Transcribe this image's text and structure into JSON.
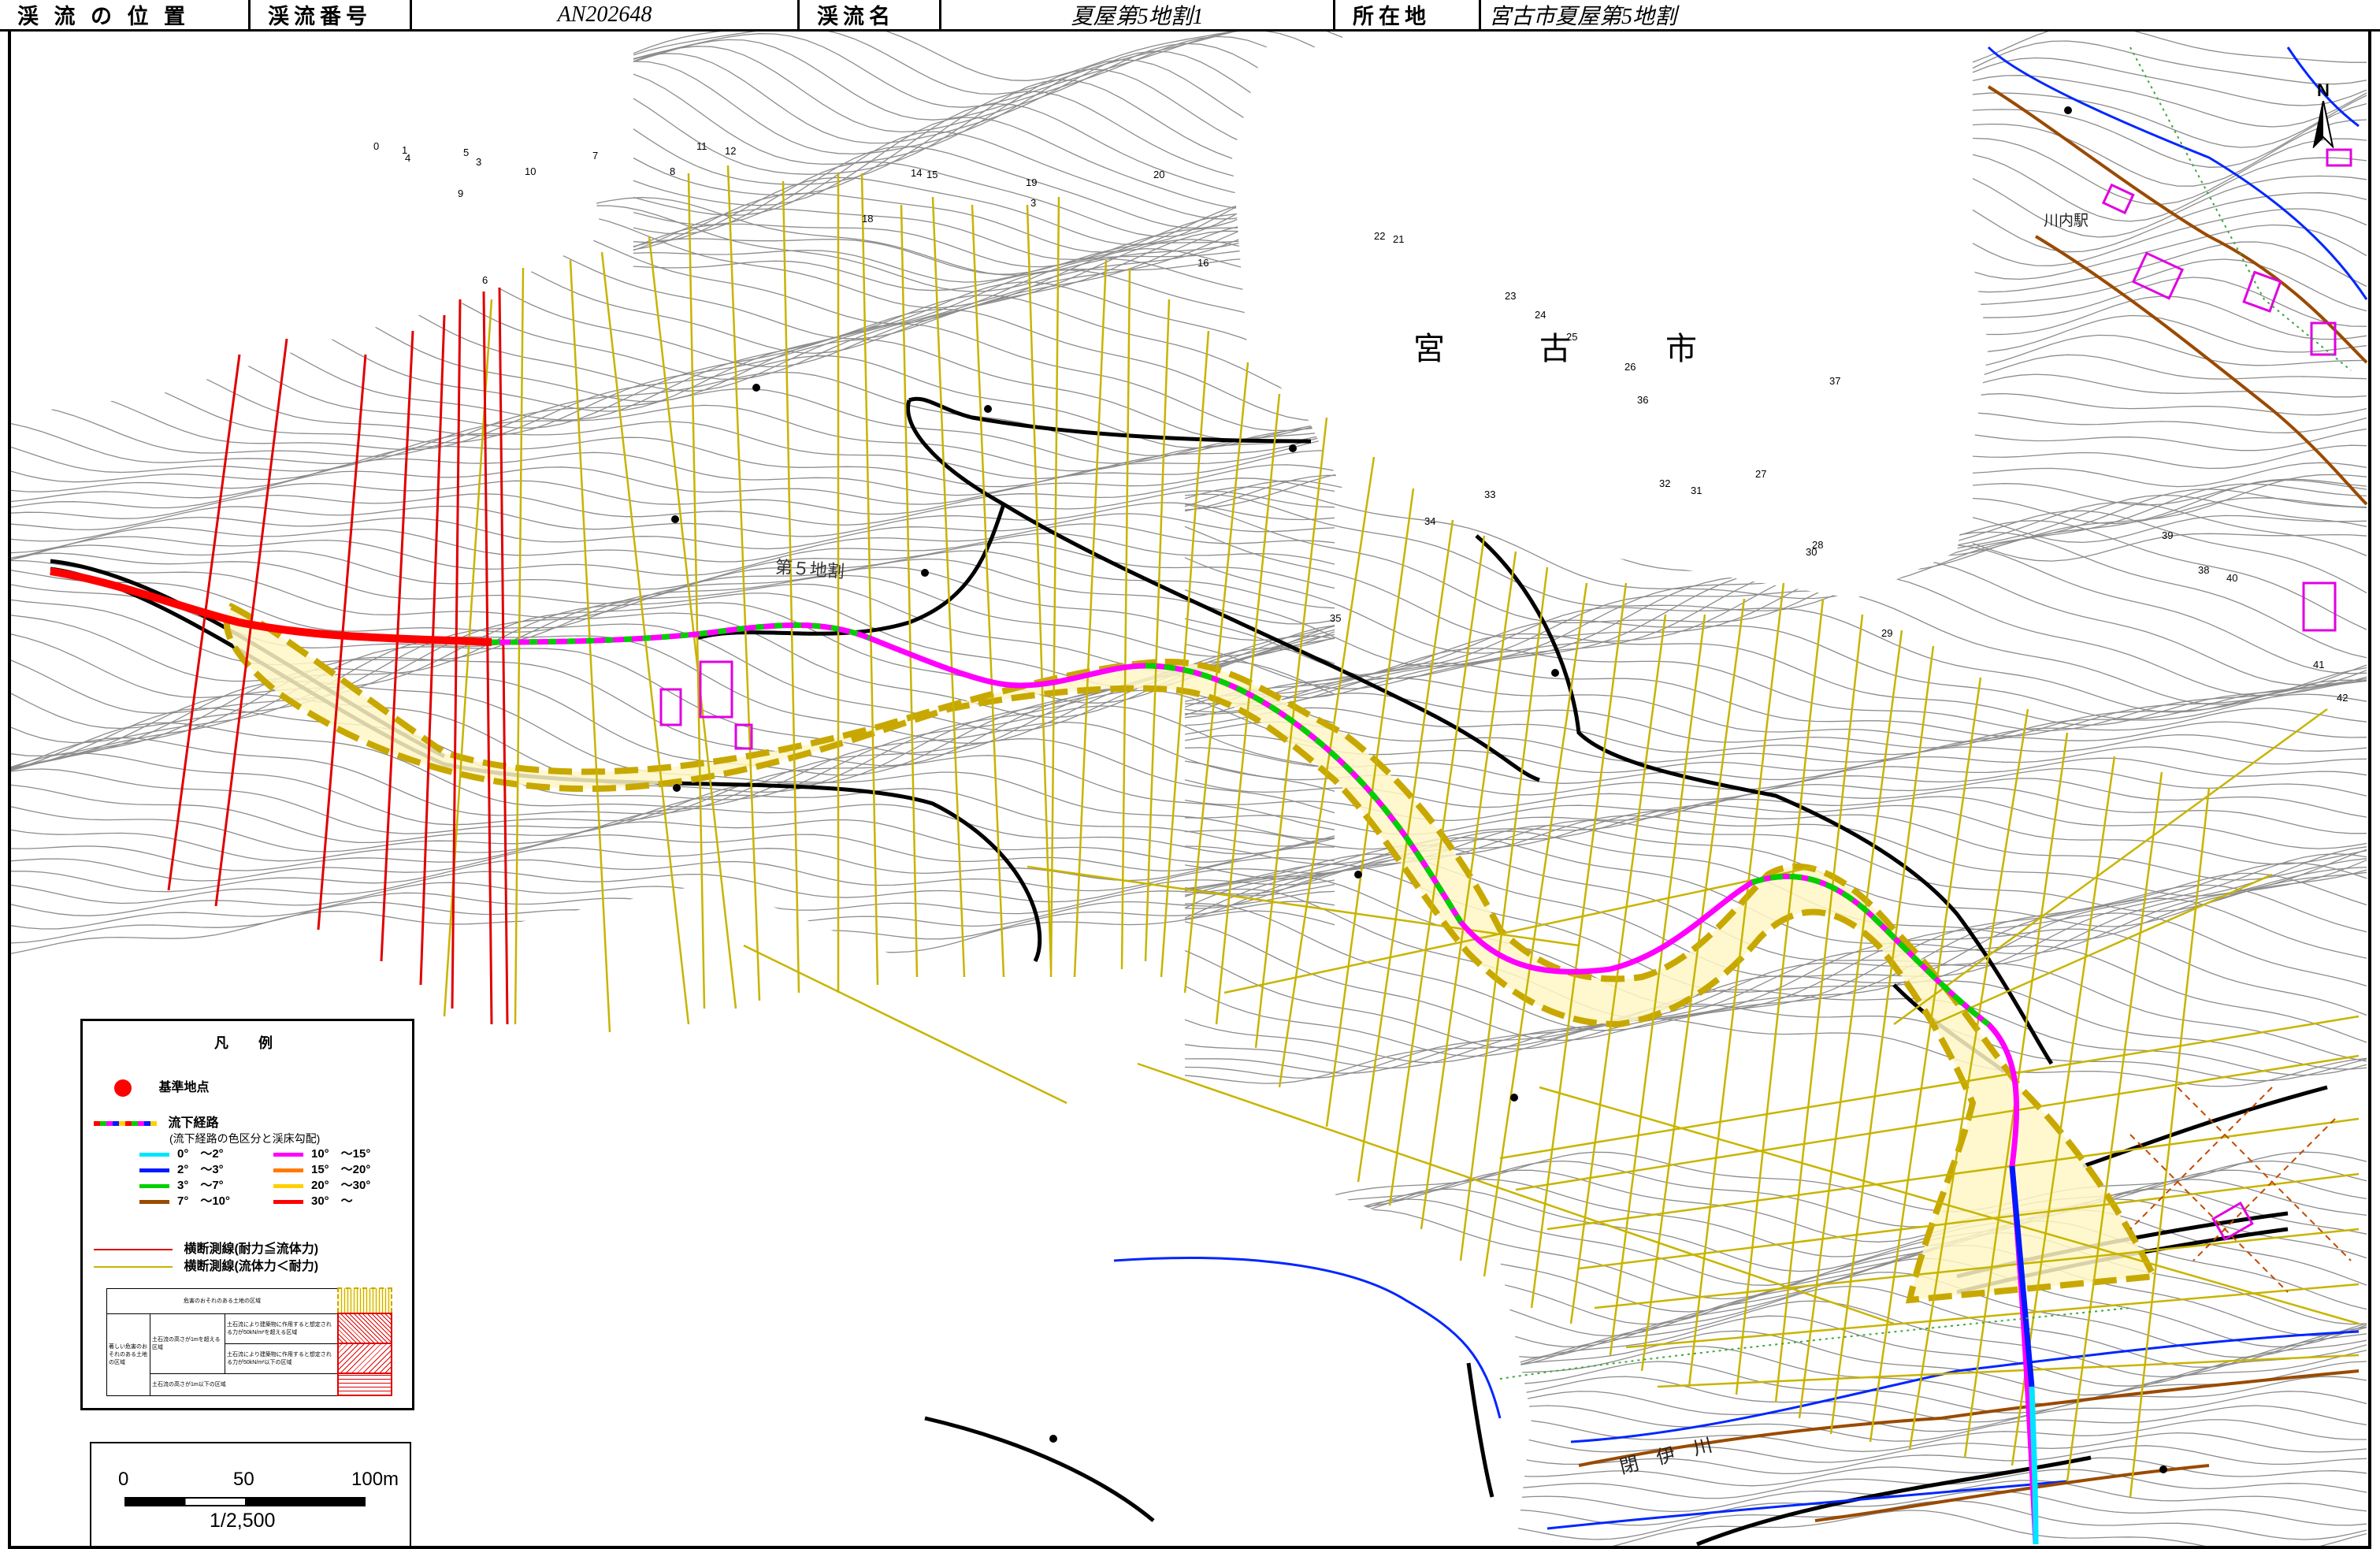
{
  "header": {
    "position_label": "渓 流 の 位 置",
    "number_label": "渓流番号",
    "number_value": "AN202648",
    "name_label": "渓流名",
    "name_value": "夏屋第5地割1",
    "location_label": "所在地",
    "location_value": "宮古市夏屋第5地割"
  },
  "map_labels": {
    "city": "宮　　　古　　　市",
    "district": "第５地割",
    "river": "閉　伊　川",
    "station": "川内駅",
    "north": "N"
  },
  "point_numbers": [
    "0",
    "1",
    "4",
    "5",
    "3",
    "9",
    "10",
    "7",
    "8",
    "11",
    "12",
    "14",
    "15",
    "18",
    "19",
    "3",
    "20",
    "16",
    "22",
    "21",
    "6",
    "23",
    "24",
    "25",
    "26",
    "36",
    "37",
    "33",
    "32",
    "31",
    "27",
    "34",
    "28",
    "30",
    "35",
    "29",
    "39",
    "38",
    "40",
    "41",
    "42"
  ],
  "legend": {
    "title": "凡　例",
    "base_point": "基準地点",
    "flow_path": "流下経路",
    "flow_path_note": "(流下経路の色区分と渓床勾配)",
    "slopes": [
      {
        "label": "0°　〜2°",
        "color": "#00e5ff"
      },
      {
        "label": "10°　〜15°",
        "color": "#ff00ff"
      },
      {
        "label": "2°　〜3°",
        "color": "#0019ff"
      },
      {
        "label": "15°　〜20°",
        "color": "#ff7a00"
      },
      {
        "label": "3°　〜7°",
        "color": "#00d000"
      },
      {
        "label": "20°　〜30°",
        "color": "#ffd000"
      },
      {
        "label": "7°　〜10°",
        "color": "#9a4a00"
      },
      {
        "label": "30°　〜",
        "color": "#ff0000"
      }
    ],
    "cross_red": "横断測線(耐力≦流体力)",
    "cross_yellow": "横断測線(流体力＜耐力)",
    "zone_danger": "危害のおそれのある土地の区域",
    "zone_severe": "著しい危害のおそれのある土地の区域",
    "zone_height_over": "土石流の高さが1mを超える区域",
    "zone_over_50": "土石流により建築物に作用すると想定される力が50kN/m²を超える区域",
    "zone_under_50": "土石流により建築物に作用すると想定される力が50kN/m²以下の区域",
    "zone_height_under": "土石流の高さが1m以下の区域"
  },
  "scale": {
    "t0": "0",
    "t50": "50",
    "t100": "100m",
    "ratio": "1/2,500"
  },
  "colors": {
    "contour": "#8c8c8c",
    "zone_outline": "#c8a800",
    "cross_yellow": "#c8b400",
    "cross_red": "#e00000",
    "road": "#000000",
    "river": "#0026ff",
    "building": "#e000e0",
    "zone_fill": "#fff7c6"
  }
}
